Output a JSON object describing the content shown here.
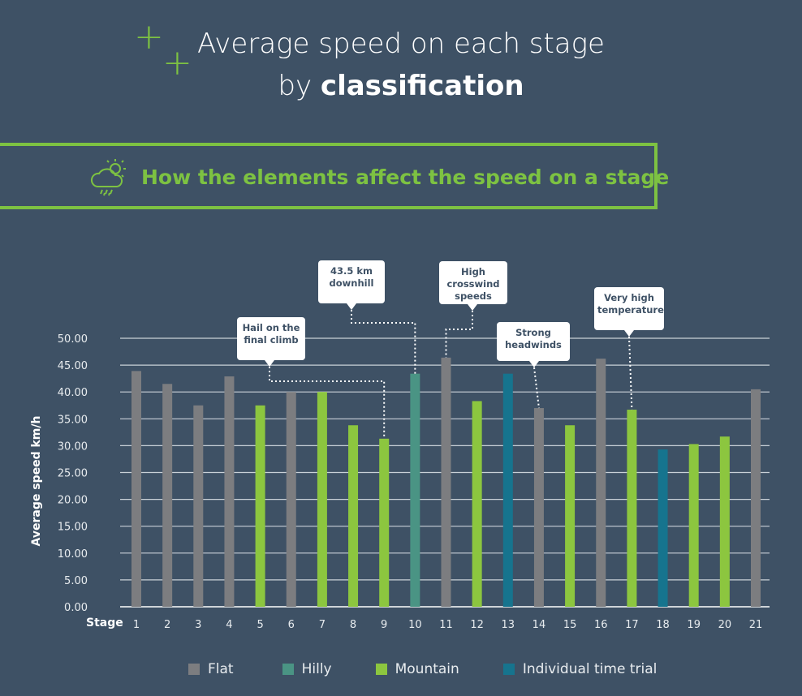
{
  "title": {
    "line1": "Average speed on each stage",
    "line2_prefix": "by ",
    "line2_bold": "classification"
  },
  "banner": {
    "icon": "weather-cloud-sun-rain-icon",
    "text": "How the elements affect the speed on a stage"
  },
  "colors": {
    "Flat": "#7c7d80",
    "Hilly": "#4a9484",
    "Mountain": "#8cc63f",
    "Individual time trial": "#16748e",
    "accent": "#7dc242"
  },
  "callouts": [
    {
      "text": "Hail on the final climb",
      "stage": 9
    },
    {
      "text": "43.5 km downhill",
      "stage": 10
    },
    {
      "text": "High crosswind speeds",
      "stage": 11
    },
    {
      "text": "Strong headwinds",
      "stage": 14
    },
    {
      "text": "Very high temperatures",
      "stage": 17
    }
  ],
  "chart_data": {
    "type": "bar",
    "title": "Average speed on each stage by classification",
    "xlabel": "Stage",
    "ylabel": "Average speed km/h",
    "ylim": [
      0,
      50
    ],
    "yticks": [
      "0.00",
      "5.00",
      "10.00",
      "15.00",
      "20.00",
      "25.00",
      "30.00",
      "35.00",
      "40.00",
      "45.00",
      "50.00"
    ],
    "grid": true,
    "legend_position": "bottom",
    "legend": [
      "Flat",
      "Hilly",
      "Mountain",
      "Individual time trial"
    ],
    "categories": [
      "1",
      "2",
      "3",
      "4",
      "5",
      "6",
      "7",
      "8",
      "9",
      "10",
      "11",
      "12",
      "13",
      "14",
      "15",
      "16",
      "17",
      "18",
      "19",
      "20",
      "21"
    ],
    "values": [
      43.9,
      41.5,
      37.5,
      42.9,
      37.5,
      40.0,
      40.0,
      33.8,
      31.3,
      43.4,
      46.4,
      38.3,
      43.4,
      37.0,
      33.8,
      46.2,
      36.7,
      29.3,
      30.3,
      31.7,
      40.5
    ],
    "classification": [
      "Flat",
      "Flat",
      "Flat",
      "Flat",
      "Mountain",
      "Flat",
      "Mountain",
      "Mountain",
      "Mountain",
      "Hilly",
      "Flat",
      "Mountain",
      "Individual time trial",
      "Flat",
      "Mountain",
      "Flat",
      "Mountain",
      "Individual time trial",
      "Mountain",
      "Mountain",
      "Flat"
    ]
  }
}
